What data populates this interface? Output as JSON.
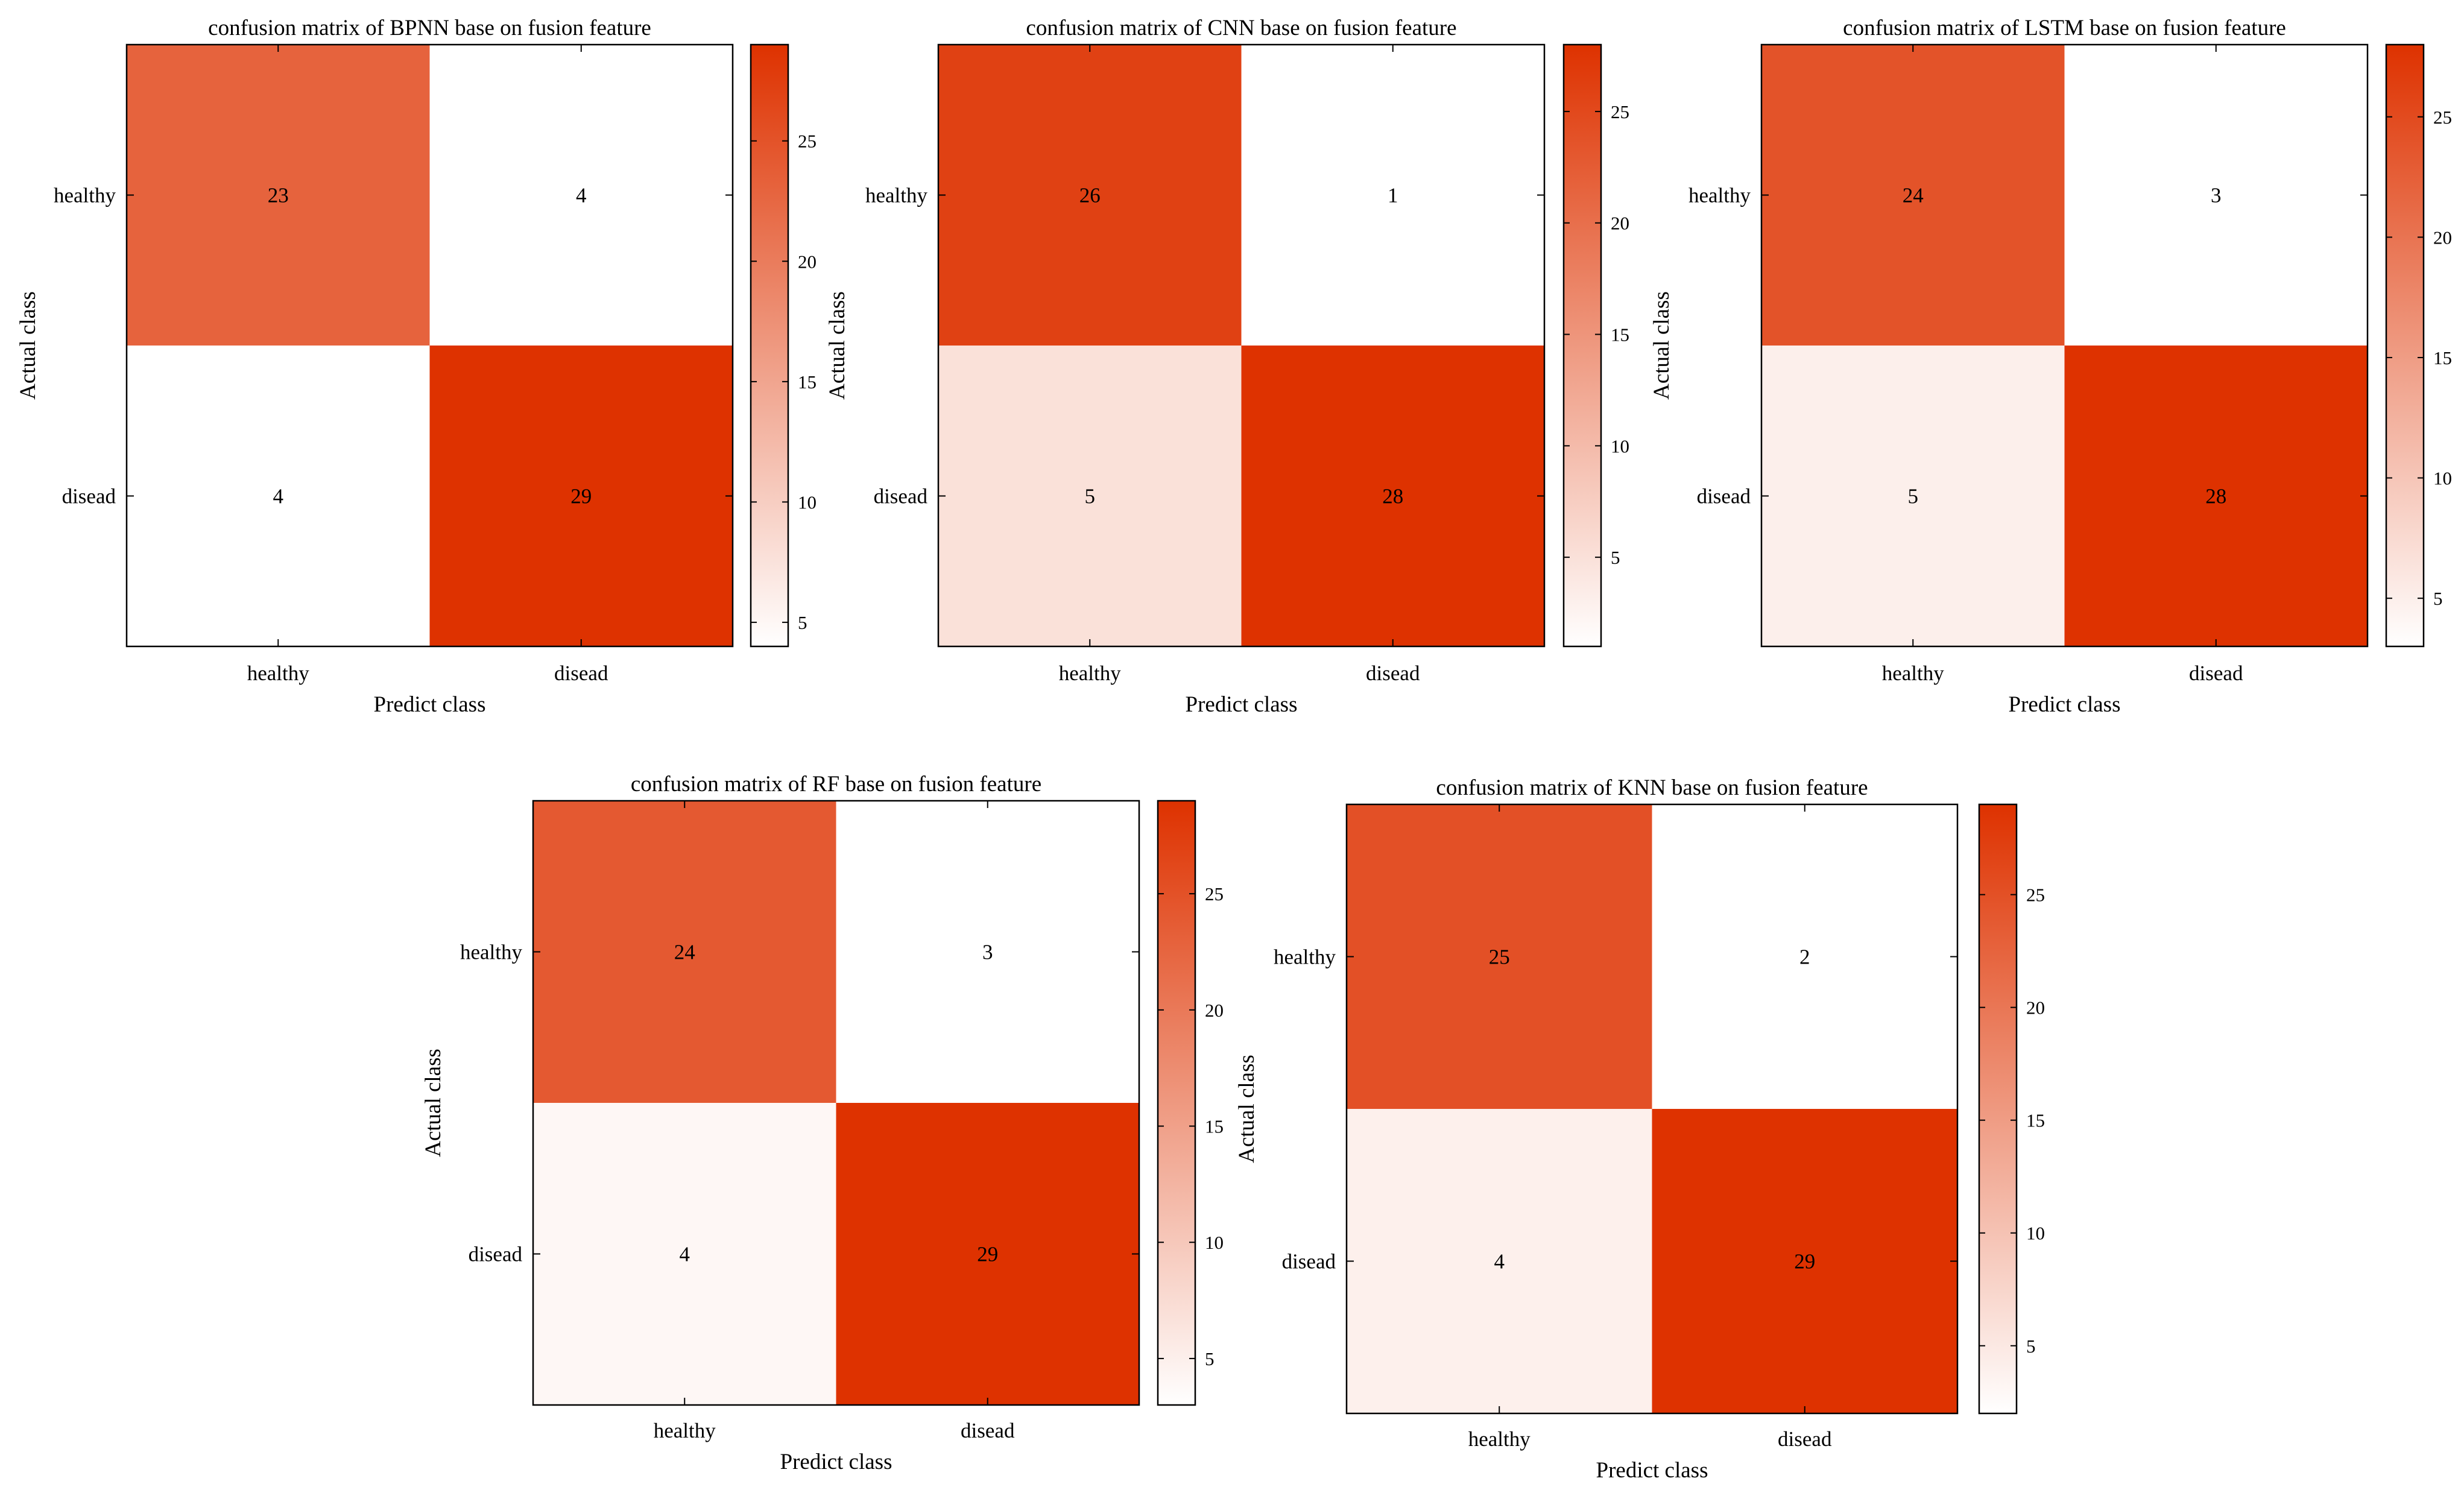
{
  "colors": {
    "low": "#ffffff",
    "high": "#de3200",
    "axis": "#000000"
  },
  "chart_data": [
    {
      "type": "heatmap",
      "title": "confusion matrix of BPNN base on fusion feature",
      "xlabel": "Predict class",
      "ylabel": "Actual class",
      "x_categories": [
        "healthy",
        "disead"
      ],
      "y_categories": [
        "healthy",
        "disead"
      ],
      "values": [
        [
          23,
          4
        ],
        [
          4,
          29
        ]
      ],
      "colorbar": {
        "range": [
          4,
          29
        ],
        "ticks": [
          5,
          10,
          15,
          20,
          25
        ]
      }
    },
    {
      "type": "heatmap",
      "title": "confusion matrix of CNN base on fusion feature",
      "xlabel": "Predict class",
      "ylabel": "Actual class",
      "x_categories": [
        "healthy",
        "disead"
      ],
      "y_categories": [
        "healthy",
        "disead"
      ],
      "values": [
        [
          26,
          1
        ],
        [
          5,
          28
        ]
      ],
      "colorbar": {
        "range": [
          1,
          28
        ],
        "ticks": [
          5,
          10,
          15,
          20,
          25
        ]
      }
    },
    {
      "type": "heatmap",
      "title": "confusion matrix of LSTM base on fusion feature",
      "xlabel": "Predict class",
      "ylabel": "Actual class",
      "x_categories": [
        "healthy",
        "disead"
      ],
      "y_categories": [
        "healthy",
        "disead"
      ],
      "values": [
        [
          24,
          3
        ],
        [
          5,
          28
        ]
      ],
      "colorbar": {
        "range": [
          3,
          28
        ],
        "ticks": [
          5,
          10,
          15,
          20,
          25
        ]
      }
    },
    {
      "type": "heatmap",
      "title": "confusion matrix of RF base on fusion feature",
      "xlabel": "Predict class",
      "ylabel": "Actual class",
      "x_categories": [
        "healthy",
        "disead"
      ],
      "y_categories": [
        "healthy",
        "disead"
      ],
      "values": [
        [
          24,
          3
        ],
        [
          4,
          29
        ]
      ],
      "colorbar": {
        "range": [
          3,
          29
        ],
        "ticks": [
          5,
          10,
          15,
          20,
          25
        ]
      }
    },
    {
      "type": "heatmap",
      "title": "confusion matrix of KNN base on fusion feature",
      "xlabel": "Predict class",
      "ylabel": "Actual class",
      "x_categories": [
        "healthy",
        "disead"
      ],
      "y_categories": [
        "healthy",
        "disead"
      ],
      "values": [
        [
          25,
          2
        ],
        [
          4,
          29
        ]
      ],
      "colorbar": {
        "range": [
          2,
          29
        ],
        "ticks": [
          5,
          10,
          15,
          20,
          25
        ]
      }
    }
  ]
}
